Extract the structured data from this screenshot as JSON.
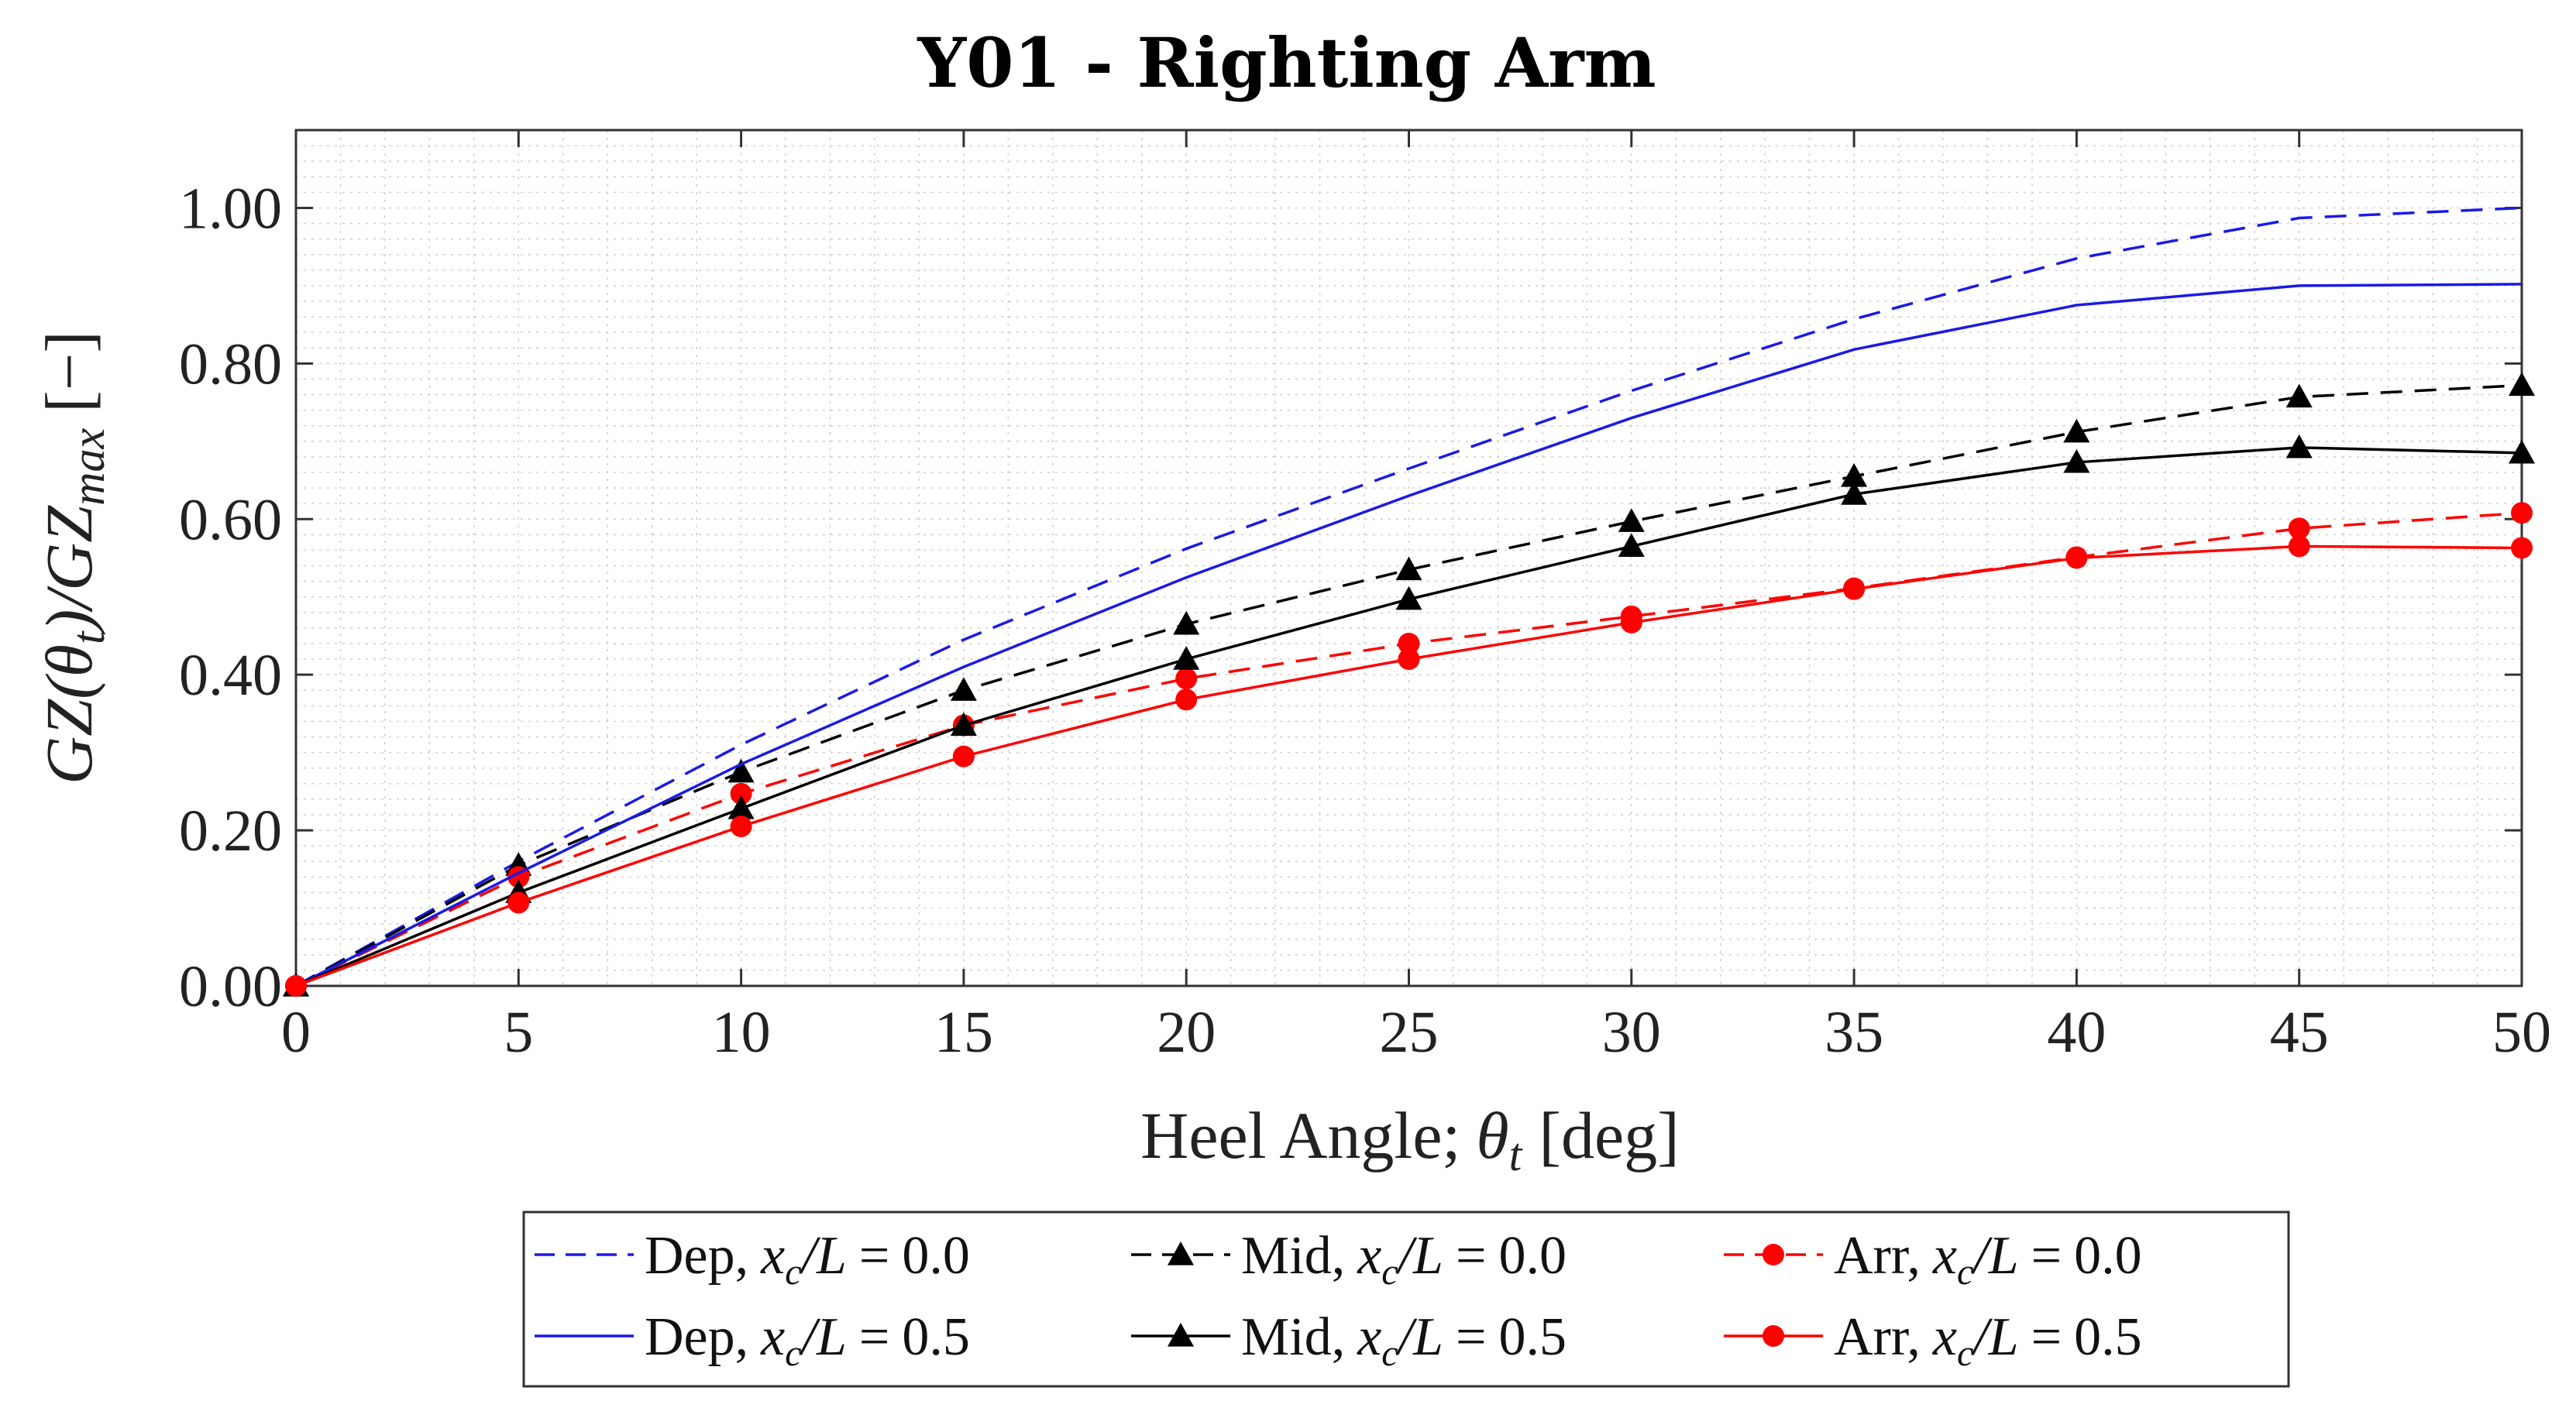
{
  "chart_data": {
    "type": "line",
    "title": "Y01 - Righting Arm",
    "xlabel": "Heel Angle; θt [deg]",
    "xlabel_text": "Heel Angle;",
    "xlabel_symbol": "θ",
    "xlabel_subscript": "t",
    "xlabel_unit": "[deg]",
    "ylabel": "GZ(θt)/GZmax [−]",
    "ylabel_parts": {
      "a": "GZ(θ",
      "a_sub": "t",
      "b": ")/GZ",
      "b_sub": "max",
      "unit": "[−]"
    },
    "xlim": [
      0,
      50
    ],
    "ylim": [
      0,
      1.1
    ],
    "xticks": [
      "0",
      "5",
      "10",
      "15",
      "20",
      "25",
      "30",
      "35",
      "40",
      "45",
      "50"
    ],
    "yticks": [
      "0.00",
      "0.20",
      "0.40",
      "0.60",
      "0.80",
      "1.00"
    ],
    "grid": "minor dotted",
    "legend_position": "bottom-outside",
    "x": [
      0,
      5,
      10,
      15,
      20,
      25,
      30,
      35,
      40,
      45,
      50
    ],
    "series": [
      {
        "name": "Dep, xc/L = 0.0",
        "label_name": "Dep,",
        "label_ratio": "0.0",
        "color": "#1a1ae6",
        "dash": "dashed",
        "marker": "none",
        "values": [
          0.0,
          0.16,
          0.31,
          0.445,
          0.562,
          0.665,
          0.765,
          0.857,
          0.935,
          0.987,
          1.0
        ]
      },
      {
        "name": "Mid, xc/L = 0.0",
        "label_name": "Mid,",
        "label_ratio": "0.0",
        "color": "#000000",
        "dash": "dashed",
        "marker": "triangle",
        "values": [
          0.0,
          0.155,
          0.275,
          0.38,
          0.465,
          0.535,
          0.597,
          0.655,
          0.712,
          0.757,
          0.772
        ]
      },
      {
        "name": "Arr, xc/L = 0.0",
        "label_name": "Arr,",
        "label_ratio": "0.0",
        "color": "#ff0000",
        "dash": "dashed",
        "marker": "circle",
        "values": [
          0.0,
          0.14,
          0.247,
          0.335,
          0.395,
          0.44,
          0.475,
          0.511,
          0.551,
          0.588,
          0.608
        ]
      },
      {
        "name": "Dep, xc/L = 0.5",
        "label_name": "Dep,",
        "label_ratio": "0.5",
        "color": "#1a1ae6",
        "dash": "solid",
        "marker": "none",
        "values": [
          0.0,
          0.145,
          0.285,
          0.41,
          0.525,
          0.63,
          0.73,
          0.818,
          0.875,
          0.9,
          0.902
        ]
      },
      {
        "name": "Mid, xc/L = 0.5",
        "label_name": "Mid,",
        "label_ratio": "0.5",
        "color": "#000000",
        "dash": "solid",
        "marker": "triangle",
        "values": [
          0.0,
          0.12,
          0.228,
          0.335,
          0.42,
          0.497,
          0.565,
          0.632,
          0.673,
          0.692,
          0.685
        ]
      },
      {
        "name": "Arr, xc/L = 0.5",
        "label_name": "Arr,",
        "label_ratio": "0.5",
        "color": "#ff0000",
        "dash": "solid",
        "marker": "circle",
        "values": [
          0.0,
          0.107,
          0.205,
          0.295,
          0.368,
          0.42,
          0.467,
          0.51,
          0.55,
          0.565,
          0.563
        ]
      }
    ]
  }
}
